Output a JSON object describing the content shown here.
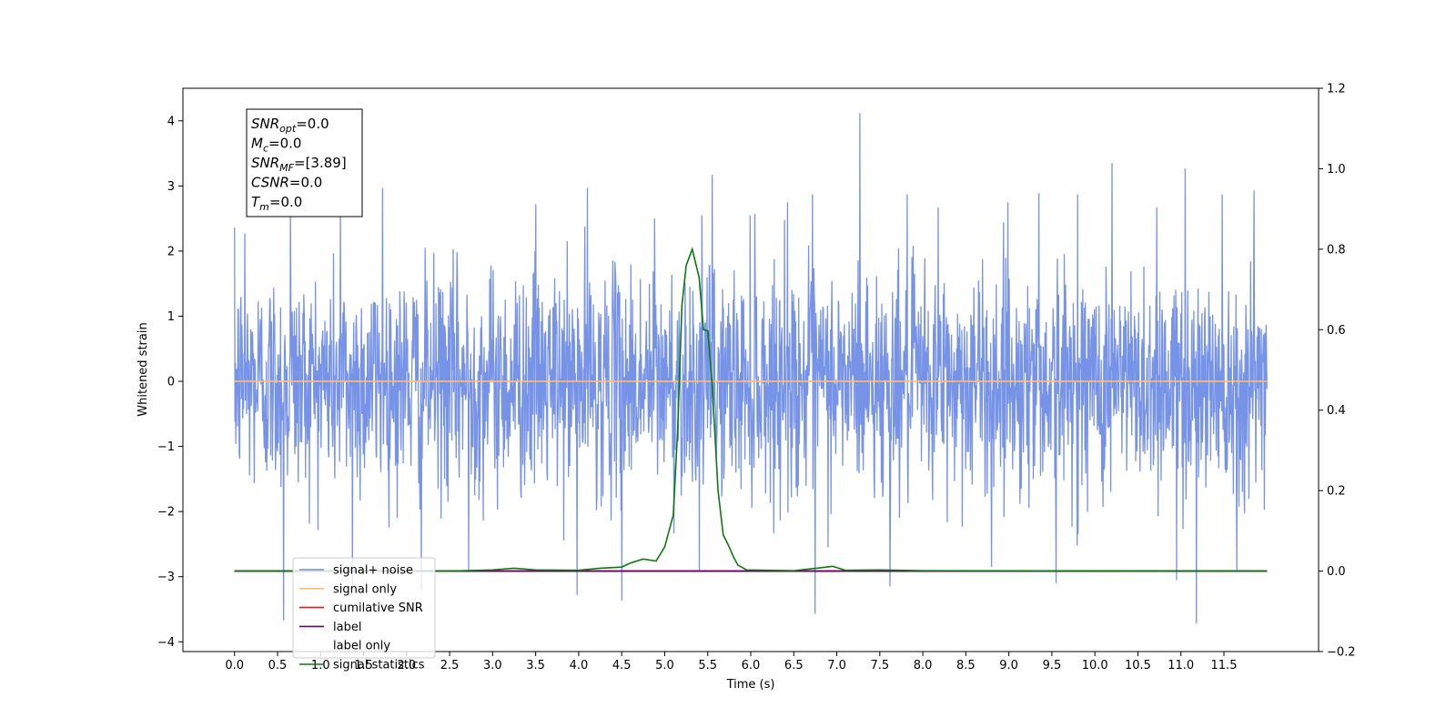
{
  "chart_data": {
    "type": "line",
    "xlabel": "Time (s)",
    "ylabel": "Whitened strain",
    "xlim": [
      -0.6,
      12.6
    ],
    "ylim": [
      -4.15,
      4.5
    ],
    "y2lim": [
      -0.2,
      1.2
    ],
    "xticks": [
      0.0,
      0.5,
      1.0,
      1.5,
      2.0,
      2.5,
      3.0,
      3.5,
      4.0,
      4.5,
      5.0,
      5.5,
      6.0,
      6.5,
      7.0,
      7.5,
      8.0,
      8.5,
      9.0,
      9.5,
      10.0,
      10.5,
      11.0,
      11.5
    ],
    "xtick_labels": [
      "0.0",
      "0.5",
      "1.0",
      "1.5",
      "2.0",
      "2.5",
      "3.0",
      "3.5",
      "4.0",
      "4.5",
      "5.0",
      "5.5",
      "6.0",
      "6.5",
      "7.0",
      "7.5",
      "8.0",
      "8.5",
      "9.0",
      "9.5",
      "10.0",
      "10.5",
      "11.0",
      "11.5"
    ],
    "yticks": [
      -4,
      -3,
      -2,
      -1,
      0,
      1,
      2,
      3,
      4
    ],
    "ytick_labels": [
      "−4",
      "−3",
      "−2",
      "−1",
      "0",
      "1",
      "2",
      "3",
      "4"
    ],
    "y2ticks": [
      -0.2,
      0.0,
      0.2,
      0.4,
      0.6,
      0.8,
      1.0,
      1.2
    ],
    "y2tick_labels": [
      "−0.2",
      "0.0",
      "0.2",
      "0.4",
      "0.6",
      "0.8",
      "1.0",
      "1.2"
    ],
    "grid": false,
    "legend_position": "bottom-left",
    "series": [
      {
        "name": "signal+ noise",
        "axis": "left",
        "color": "#4a6fe0",
        "x_range": [
          0.0,
          12.0
        ],
        "noise_std": 0.85,
        "peaks": [
          [
            0.57,
            -3.67
          ],
          [
            0.65,
            2.65
          ],
          [
            1.23,
            2.75
          ],
          [
            1.37,
            -3.23
          ],
          [
            1.72,
            2.97
          ],
          [
            2.17,
            -3.22
          ],
          [
            2.72,
            -2.92
          ],
          [
            3.5,
            2.72
          ],
          [
            3.98,
            -3.28
          ],
          [
            4.1,
            2.97
          ],
          [
            4.5,
            -3.37
          ],
          [
            4.88,
            2.5
          ],
          [
            5.55,
            3.17
          ],
          [
            5.4,
            -2.9
          ],
          [
            6.05,
            2.57
          ],
          [
            6.43,
            2.75
          ],
          [
            6.72,
            2.87
          ],
          [
            6.75,
            -3.57
          ],
          [
            7.27,
            4.12
          ],
          [
            7.62,
            -3.15
          ],
          [
            7.82,
            2.87
          ],
          [
            8.18,
            2.67
          ],
          [
            8.8,
            -2.85
          ],
          [
            8.99,
            2.75
          ],
          [
            9.35,
            2.89
          ],
          [
            9.55,
            -3.1
          ],
          [
            9.8,
            2.87
          ],
          [
            10.2,
            3.35
          ],
          [
            10.72,
            2.67
          ],
          [
            10.95,
            -3.05
          ],
          [
            11.05,
            3.27
          ],
          [
            11.18,
            -3.72
          ],
          [
            11.48,
            2.87
          ],
          [
            11.65,
            -2.9
          ],
          [
            11.85,
            2.93
          ],
          [
            0.12,
            2.27
          ]
        ]
      },
      {
        "name": "signal only",
        "axis": "left",
        "color": "#ffbe6b",
        "x": [
          0.0,
          12.0
        ],
        "y": [
          0.0,
          0.0
        ]
      },
      {
        "name": "cumilative SNR",
        "axis": "right",
        "color": "#e41a1a",
        "x": [
          0.0,
          12.0
        ],
        "y": [
          0.0,
          0.0
        ]
      },
      {
        "name": "label",
        "axis": "right",
        "color": "#6a006a",
        "x": [
          0.0,
          12.0
        ],
        "y": [
          0.0,
          0.0
        ]
      },
      {
        "name": "label only",
        "axis": "right",
        "color": "#6a006a",
        "x": [
          0.0,
          12.0
        ],
        "y": [
          0.0,
          0.0
        ]
      },
      {
        "name": "signal statistics",
        "axis": "right",
        "color": "#0b7a0b",
        "x": [
          0.0,
          2.5,
          3.0,
          3.25,
          3.5,
          4.0,
          4.25,
          4.5,
          4.6,
          4.75,
          4.9,
          5.0,
          5.1,
          5.15,
          5.2,
          5.25,
          5.32,
          5.4,
          5.45,
          5.5,
          5.55,
          5.62,
          5.68,
          5.75,
          5.8,
          5.85,
          5.95,
          6.5,
          6.8,
          6.95,
          7.1,
          7.5,
          8.0,
          12.0
        ],
        "y": [
          0.0,
          0.0,
          0.003,
          0.007,
          0.003,
          0.002,
          0.007,
          0.01,
          0.02,
          0.03,
          0.025,
          0.06,
          0.14,
          0.35,
          0.66,
          0.76,
          0.8,
          0.73,
          0.6,
          0.597,
          0.47,
          0.2,
          0.09,
          0.06,
          0.035,
          0.015,
          0.003,
          0.001,
          0.008,
          0.012,
          0.002,
          0.003,
          0.001,
          0.0
        ]
      }
    ],
    "annotation": {
      "lines": [
        {
          "base": "SNR",
          "sub": "opt",
          "rest": "=0.0"
        },
        {
          "base": "M",
          "sub": "c",
          "rest": "=0.0"
        },
        {
          "base": "SNR",
          "sub": "MF",
          "rest": "=[3.89]"
        },
        {
          "base": "CSNR",
          "sub": "",
          "rest": "=0.0"
        },
        {
          "base": "T",
          "sub": "m",
          "rest": "=0.0"
        }
      ]
    },
    "legend": [
      "signal+ noise",
      "signal only",
      "cumilative SNR",
      "label",
      "label only",
      "signal statistics"
    ]
  }
}
